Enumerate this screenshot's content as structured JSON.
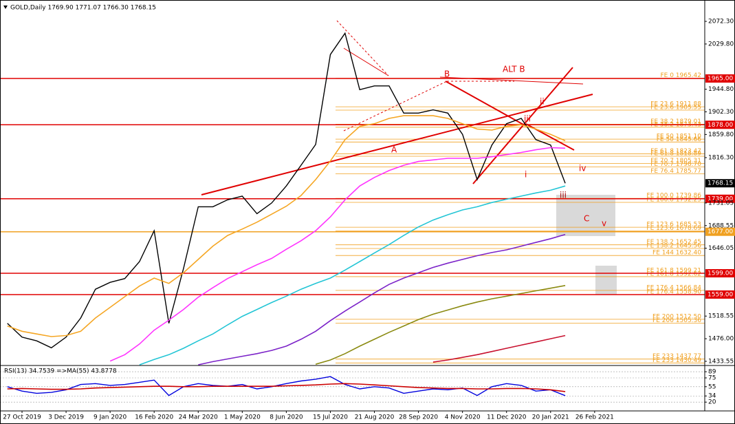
{
  "chart_data": [
    {
      "type": "line",
      "title": "GOLD,Daily  1769.90 1771.07 1766.30 1768.15",
      "categories": [
        null,
        "27 Oct 2019",
        null,
        null,
        "3 Dec 2019",
        null,
        null,
        "9 Jan 2020",
        null,
        null,
        "16 Feb 2020",
        null,
        null,
        "24 Mar 2020",
        null,
        null,
        "1 May 2020",
        null,
        null,
        "8 Jun 2020",
        null,
        null,
        "15 Jul 2020",
        null,
        null,
        "21 Aug 2020",
        null,
        null,
        "28 Sep 2020",
        null,
        null,
        "4 Nov 2020",
        null,
        null,
        "11 Dec 2020",
        null,
        null,
        "20 Jan 2021",
        null,
        null,
        "26 Feb 2021",
        null,
        null,
        null,
        null,
        null,
        null,
        null
      ],
      "series": [
        {
          "color": "#000000",
          "values": [
            1505,
            1479,
            1472,
            1459,
            1479,
            1515,
            1569,
            1582,
            1589,
            1621,
            1679,
            1505,
            1608,
            1724,
            1724,
            1737,
            1744,
            1711,
            1731,
            1763,
            1802,
            1841,
            2010,
            2050,
            1944,
            1951,
            1951,
            1900,
            1900,
            1906,
            1900,
            1860,
            1775,
            1840,
            1880,
            1890,
            1850,
            1840,
            1768.15,
            null,
            null,
            null,
            null,
            null,
            null,
            null,
            null,
            null
          ]
        },
        {
          "color": "#f5a623",
          "values": [
            1500,
            1490,
            1485,
            1480,
            1482,
            1490,
            1515,
            1535,
            1555,
            1575,
            1590,
            1580,
            1600,
            1625,
            1650,
            1670,
            1682,
            1695,
            1710,
            1725,
            1745,
            1775,
            1810,
            1850,
            1875,
            1880,
            1890,
            1895,
            1895,
            1895,
            1890,
            1880,
            1870,
            1868,
            1875,
            1878,
            1870,
            1860,
            1848,
            null,
            null,
            null,
            null,
            null,
            null,
            null,
            null,
            null
          ]
        },
        {
          "color": "#ff33ff",
          "values": [
            null,
            null,
            null,
            null,
            null,
            null,
            null,
            1434,
            1446,
            1466,
            1492,
            1511,
            1531,
            1554,
            1572,
            1589,
            1602,
            1615,
            1627,
            1644,
            1660,
            1679,
            1705,
            1737,
            1763,
            1779,
            1792,
            1802,
            1809,
            1812,
            1815,
            1815,
            1815,
            1818,
            1822,
            1826,
            1831,
            1835,
            1834,
            null,
            null,
            null,
            null,
            null,
            null,
            null,
            null,
            null
          ]
        },
        {
          "color": "#22c5d5",
          "values": [
            null,
            null,
            null,
            null,
            null,
            null,
            null,
            null,
            null,
            1427,
            1437,
            1446,
            1458,
            1472,
            1485,
            1502,
            1518,
            1531,
            1544,
            1556,
            1569,
            1580,
            1590,
            1605,
            1621,
            1637,
            1653,
            1670,
            1686,
            1699,
            1709,
            1718,
            1724,
            1732,
            1738,
            1744,
            1750,
            1755,
            1763,
            null,
            null,
            null,
            null,
            null,
            null,
            null,
            null,
            null
          ]
        },
        {
          "color": "#7b22c8",
          "values": [
            null,
            null,
            null,
            null,
            null,
            null,
            null,
            null,
            null,
            null,
            null,
            null,
            null,
            1427,
            1433,
            1438,
            1443,
            1448,
            1454,
            1462,
            1475,
            1490,
            1510,
            1528,
            1545,
            1562,
            1578,
            1590,
            1600,
            1610,
            1618,
            1625,
            1632,
            1638,
            1643,
            1650,
            1657,
            1664,
            1672,
            null,
            null,
            null,
            null,
            null,
            null,
            null,
            null,
            null
          ]
        },
        {
          "color": "#8a8a10",
          "values": [
            null,
            null,
            null,
            null,
            null,
            null,
            null,
            null,
            null,
            null,
            null,
            null,
            null,
            null,
            null,
            null,
            null,
            null,
            null,
            null,
            null,
            1428,
            1436,
            1448,
            1462,
            1475,
            1488,
            1500,
            1512,
            1522,
            1530,
            1538,
            1545,
            1551,
            1556,
            1561,
            1566,
            1571,
            1576,
            null,
            null,
            null,
            null,
            null,
            null,
            null,
            null,
            null
          ]
        },
        {
          "color": "#c8102e",
          "values": [
            null,
            null,
            null,
            null,
            null,
            null,
            null,
            null,
            null,
            null,
            null,
            null,
            null,
            null,
            null,
            null,
            null,
            null,
            null,
            null,
            null,
            null,
            null,
            null,
            null,
            null,
            null,
            null,
            null,
            1432,
            1436,
            1441,
            1446,
            1452,
            1458,
            1464,
            1470,
            1476,
            1482,
            null,
            null,
            null,
            null,
            null,
            null,
            null,
            null,
            null
          ]
        }
      ],
      "ylim": [
        1427,
        2106
      ],
      "yticks": [
        {
          "value": 2072.3,
          "label": "2072.30"
        },
        {
          "value": 2029.8,
          "label": "2029.80"
        },
        {
          "value": 1944.8,
          "label": "1944.80"
        },
        {
          "value": 1902.3,
          "label": "1902.30"
        },
        {
          "value": 1859.8,
          "label": "1859.80"
        },
        {
          "value": 1816.3,
          "label": "1816.30"
        },
        {
          "value": 1731.05,
          "label": "1731.05"
        },
        {
          "value": 1688.55,
          "label": "1688.55"
        },
        {
          "value": 1646.05,
          "label": "1646.05"
        },
        {
          "value": 1518.55,
          "label": "1518.55"
        },
        {
          "value": 1476,
          "label": "1476.00"
        },
        {
          "value": 1433.55,
          "label": "1433.55"
        }
      ],
      "levels": [
        {
          "value": 1965,
          "label": "1965.00",
          "color": "#e00000"
        },
        {
          "value": 1878,
          "label": "1878.00",
          "color": "#e00000"
        },
        {
          "value": 1739,
          "label": "1739.00",
          "color": "#e00000"
        },
        {
          "value": 1677,
          "label": "1677.00",
          "color": "#f0a020"
        },
        {
          "value": 1599,
          "label": "1599.00",
          "color": "#e00000"
        },
        {
          "value": 1559,
          "label": "1559.00",
          "color": "#e00000"
        }
      ],
      "last_price": {
        "value": 1768.15,
        "label": "1768.15"
      },
      "fib_levels": [
        {
          "value": 1965.42,
          "label": "FE 0 1965.42"
        },
        {
          "value": 1911.88,
          "label": "FE 23.6 1911.88"
        },
        {
          "value": 1905.55,
          "label": "FE 23.6 1905.55"
        },
        {
          "value": 1879.01,
          "label": "FE 38.2 1879.01"
        },
        {
          "value": 1873.43,
          "label": "FE 38.2 1873.43"
        },
        {
          "value": 1851.1,
          "label": "FE 50 1851.10"
        },
        {
          "value": 1845.66,
          "label": "FE 50 1845.66"
        },
        {
          "value": 1823.47,
          "label": "FE 61.8 1823.47"
        },
        {
          "value": 1818.89,
          "label": "FE 61.8 1818.89"
        },
        {
          "value": 1805.31,
          "label": "FE 70.7 1805.31"
        },
        {
          "value": 1798.7,
          "label": "FE 70.7 1798.70"
        },
        {
          "value": 1785.77,
          "label": "FE 76.4 1785.77"
        },
        {
          "value": 1739.86,
          "label": "FE 100.0 1739.86"
        },
        {
          "value": 1732.25,
          "label": "FE 100.0 1732.25"
        },
        {
          "value": 1685.53,
          "label": "FE 123.6 1685.53"
        },
        {
          "value": 1678.69,
          "label": "FE 123.6 1678.69"
        },
        {
          "value": 1652.45,
          "label": "FE 138.2 1652.45"
        },
        {
          "value": 1645.56,
          "label": "FE 138.2 1645.56"
        },
        {
          "value": 1632.4,
          "label": "FE 144 1632.40"
        },
        {
          "value": 1599.21,
          "label": "FE 161.8 1599.21"
        },
        {
          "value": 1592.62,
          "label": "FE 161.8 1592.62"
        },
        {
          "value": 1566.84,
          "label": "FE 176.4 1566.84"
        },
        {
          "value": 1558.9,
          "label": "FE 176.4 1558.90"
        },
        {
          "value": 1512.5,
          "label": "FE 200 1512.50"
        },
        {
          "value": 1505.36,
          "label": "FE 200 1505.36"
        },
        {
          "value": 1437.77,
          "label": "FE 233 1437.77"
        },
        {
          "value": 1430.49,
          "label": "FE 233 1430.49"
        }
      ],
      "annotations": [
        "B",
        "ALT B",
        "A",
        "i",
        "ii",
        "iii",
        "iv",
        "iii",
        "C",
        "v"
      ]
    },
    {
      "type": "line",
      "title": "RSI(13) 34.7539 =>MA(55) 43.8778",
      "series": [
        {
          "color": "#0000dd",
          "values": [
            55,
            45,
            40,
            42,
            48,
            60,
            62,
            58,
            60,
            65,
            70,
            35,
            55,
            62,
            58,
            56,
            60,
            50,
            55,
            62,
            68,
            72,
            78,
            60,
            50,
            55,
            52,
            40,
            45,
            50,
            48,
            52,
            35,
            55,
            62,
            58,
            45,
            48,
            34.7539,
            null,
            null,
            null,
            null,
            null,
            null,
            null,
            null,
            null
          ]
        },
        {
          "color": "#cc0000",
          "values": [
            50,
            51,
            50,
            49,
            49,
            50,
            52,
            53,
            54,
            55,
            56,
            56,
            55,
            55,
            56,
            56,
            56,
            56,
            56,
            57,
            58,
            59,
            61,
            62,
            61,
            59,
            57,
            55,
            53,
            52,
            51,
            51,
            50,
            50,
            51,
            51,
            50,
            48,
            43.8778,
            null,
            null,
            null,
            null,
            null,
            null,
            null,
            null,
            null
          ]
        }
      ],
      "ylim": [
        0,
        100
      ],
      "yticks": [
        89,
        75,
        55,
        34,
        20
      ]
    }
  ]
}
